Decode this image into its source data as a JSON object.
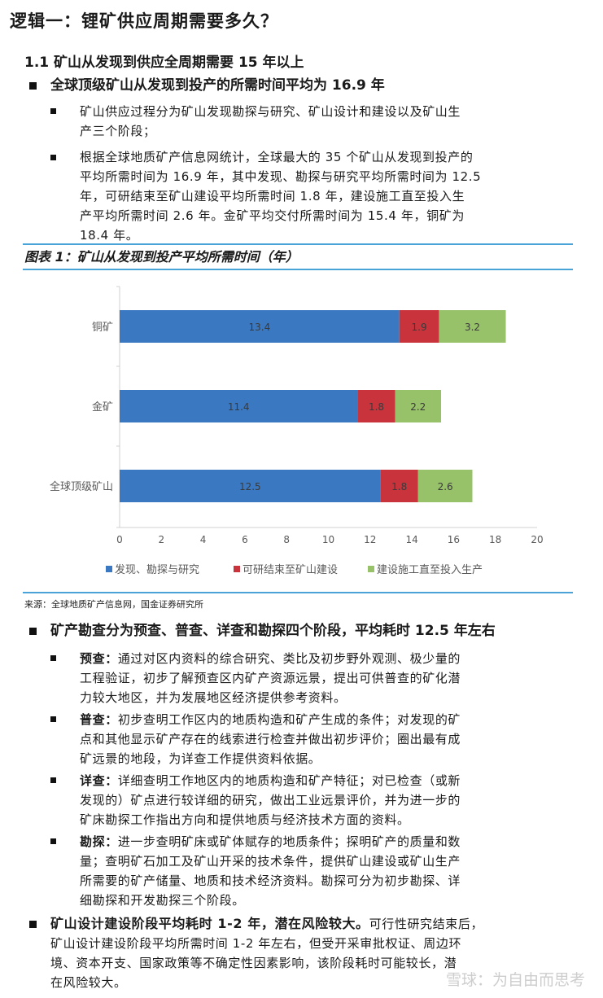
{
  "heading": "逻辑一：锂矿供应周期需要多久？",
  "section": "1.1 矿山从发现到供应全周期需要 15 年以上",
  "bullet1": {
    "title": "全球顶级矿山从发现到投产的所需时间平均为 16.9 年",
    "items": [
      [
        "矿山供应过程分为矿山发现勘探与研究、矿山设计和建设以及矿山生",
        "产三个阶段；"
      ],
      [
        "根据全球地质矿产信息网统计，全球最大的 35 个矿山从发现到投产的",
        "平均所需时间为 16.9 年，其中发现、勘探与研究平均所需时间为 12.5",
        "年，可研结束至矿山建设平均所需时间 1.8 年，建设施工直至投入生",
        "产平均所需时间 2.6 年。金矿平均交付所需时间为 15.4 年，铜矿为",
        "18.4 年。"
      ]
    ]
  },
  "figure": {
    "title": "图表 1：矿山从发现到投产平均所需时间（年）",
    "source": "来源：全球地质矿产信息网，国金证券研究所"
  },
  "chart_data": {
    "type": "bar",
    "orientation": "horizontal",
    "stacked": true,
    "categories": [
      "铜矿",
      "金矿",
      "全球顶级矿山"
    ],
    "series": [
      {
        "name": "发现、勘探与研究",
        "values": [
          13.4,
          11.4,
          12.5
        ],
        "color": "#3a78c2"
      },
      {
        "name": "可研结束至矿山建设",
        "values": [
          1.9,
          1.8,
          1.8
        ],
        "color": "#c9343c"
      },
      {
        "name": "建设施工直至投入生产",
        "values": [
          3.2,
          2.2,
          2.6
        ],
        "color": "#98c26a"
      }
    ],
    "xlim": [
      0,
      20
    ],
    "xticks": [
      "0",
      "2",
      "4",
      "6",
      "8",
      "10",
      "12",
      "14",
      "16",
      "18",
      "20"
    ],
    "legend": "bottom",
    "grid": false
  },
  "bullet2": {
    "title": "矿产勘查分为预查、普查、详查和勘探四个阶段，平均耗时 12.5 年左右",
    "items": [
      {
        "term": "预查：",
        "lines": [
          "通过对区内资料的综合研究、类比及初步野外观测、极少量的",
          "工程验证，初步了解预查区内矿产资源远景，提出可供普查的矿化潜",
          "力较大地区，并为发展地区经济提供参考资料。"
        ]
      },
      {
        "term": "普查：",
        "lines": [
          "初步查明工作区内的地质构造和矿产生成的条件；对发现的矿",
          "点和其他显示矿产存在的线索进行检查并做出初步评价；圈出最有成",
          "矿远景的地段，为详查工作提供资料依据。"
        ]
      },
      {
        "term": "详查：",
        "lines": [
          "详细查明工作地区内的地质构造和矿产特征；对已检查（或新",
          "发现的）矿点进行较详细的研究，做出工业远景评价，并为进一步的",
          "矿床勘探工作指出方向和提供地质与经济技术方面的资料。"
        ]
      },
      {
        "term": "勘探：",
        "lines": [
          "进一步查明矿床或矿体赋存的地质条件；探明矿产的质量和数",
          "量；查明矿石加工及矿山开采的技术条件，提供矿山建设或矿山生产",
          "所需要的矿产储量、地质和技术经济资料。勘探可分为初步勘探、详",
          "细勘探和开发勘探三个阶段。"
        ]
      }
    ]
  },
  "bullet3": {
    "title": "矿山设计建设阶段平均耗时 1-2 年，潜在风险较大。",
    "first_line_rest": "可行性研究结束后，",
    "lines": [
      "矿山设计建设阶段平均所需时间 1-2 年左右，但受开采审批权证、周边环",
      "境、资本开支、国家政策等不确定性因素影响，该阶段耗时可能较长，潜",
      "在风险较大。"
    ]
  },
  "watermark": "雪球：为自由而思考"
}
